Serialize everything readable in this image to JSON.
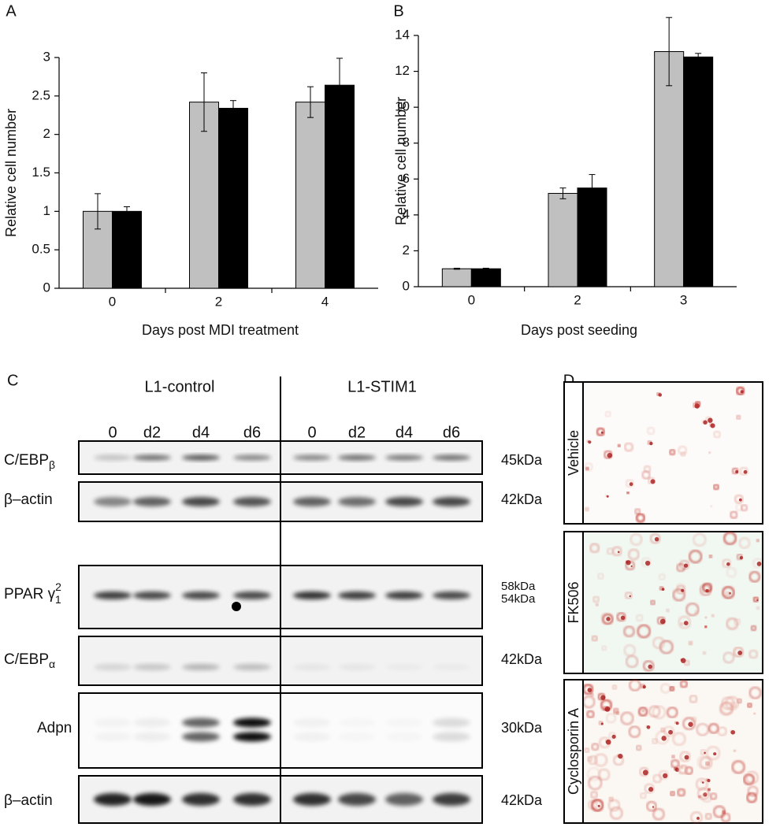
{
  "chart_data": [
    {
      "type": "bar",
      "panel_label": "A",
      "xlabel": "Days post MDI treatment",
      "ylabel": "Relative cell number",
      "categories": [
        "0",
        "2",
        "4"
      ],
      "series": [
        {
          "color": "#c0c0c0",
          "values": [
            1,
            2.42,
            2.42
          ],
          "errors": [
            0.23,
            0.38,
            0.2
          ]
        },
        {
          "color": "#000000",
          "values": [
            1,
            2.34,
            2.64
          ],
          "errors": [
            0.06,
            0.1,
            0.35
          ]
        }
      ],
      "ylim": [
        0,
        3
      ],
      "yticks": [
        0,
        0.5,
        1,
        1.5,
        2,
        2.5,
        3
      ]
    },
    {
      "type": "bar",
      "panel_label": "B",
      "xlabel": "Days post seeding",
      "ylabel": "Relative cell number",
      "categories": [
        "0",
        "2",
        "3"
      ],
      "series": [
        {
          "color": "#c0c0c0",
          "values": [
            1,
            5.2,
            13.1
          ],
          "errors": [
            0.03,
            0.3,
            1.9
          ]
        },
        {
          "color": "#000000",
          "values": [
            1,
            5.5,
            12.8
          ],
          "errors": [
            0.03,
            0.75,
            0.2
          ]
        }
      ],
      "ylim": [
        0,
        14
      ],
      "yticks": [
        0,
        2,
        4,
        6,
        8,
        10,
        12,
        14
      ]
    }
  ],
  "panel_c": {
    "panel_label": "C",
    "groups": [
      "L1-control",
      "L1-STIM1"
    ],
    "lanes": [
      "0",
      "d2",
      "d4",
      "d6",
      "0",
      "d2",
      "d4",
      "d6"
    ],
    "rows": [
      {
        "label": "C/EBP",
        "sub": "β",
        "sizes": [
          "45kDa"
        ]
      },
      {
        "label": "β–actin",
        "sizes": [
          "42kDa"
        ]
      },
      {
        "label": "PPAR γ",
        "sup": "2",
        "sub": "1",
        "sizes": [
          "58kDa",
          "54kDa"
        ]
      },
      {
        "label": "C/EBP",
        "sub": "α",
        "sizes": [
          "42kDa"
        ]
      },
      {
        "label": "Adpn",
        "sizes": [
          "30kDa"
        ]
      },
      {
        "label": "β–actin",
        "sizes": [
          "42kDa"
        ]
      }
    ]
  },
  "panel_d": {
    "panel_label": "D",
    "images": [
      "Vehicle",
      "FK506",
      "Cyclosporin A"
    ]
  }
}
